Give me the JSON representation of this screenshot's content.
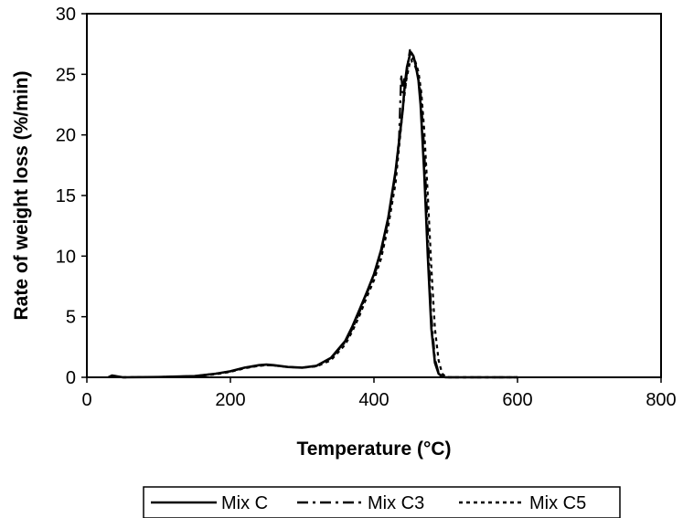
{
  "chart_data": {
    "type": "line",
    "xlabel": "Temperature (°C)",
    "ylabel": "Rate of weight loss (%/min)",
    "xlim": [
      0,
      800
    ],
    "ylim": [
      0,
      30
    ],
    "x_ticks": [
      "0",
      "200",
      "400",
      "600",
      "800"
    ],
    "y_ticks": [
      "0",
      "5",
      "10",
      "15",
      "20",
      "25",
      "30"
    ],
    "grid": false,
    "legend_position": "bottom",
    "series": [
      {
        "name": "Mix C",
        "style": "solid",
        "color": "#000000",
        "x": [
          30,
          35,
          40,
          50,
          100,
          150,
          180,
          200,
          220,
          240,
          250,
          260,
          280,
          300,
          320,
          340,
          360,
          370,
          380,
          390,
          400,
          410,
          420,
          430,
          435,
          440,
          443,
          446,
          450,
          452,
          455,
          458,
          462,
          465,
          470,
          475,
          480,
          485,
          490,
          495,
          500,
          520,
          600
        ],
        "y": [
          0.0,
          0.15,
          0.1,
          0.0,
          0.02,
          0.1,
          0.3,
          0.5,
          0.8,
          1.0,
          1.05,
          1.0,
          0.85,
          0.8,
          0.95,
          1.6,
          3.0,
          4.2,
          5.6,
          7.0,
          8.5,
          10.5,
          13.2,
          17.0,
          19.5,
          22.0,
          24.2,
          25.6,
          26.6,
          26.8,
          26.5,
          25.8,
          24.5,
          22.5,
          17.0,
          10.0,
          4.0,
          1.2,
          0.3,
          0.05,
          0.0,
          0.0,
          0.0
        ]
      },
      {
        "name": "Mix C3",
        "style": "dashdot",
        "color": "#000000",
        "x": [
          30,
          35,
          40,
          50,
          100,
          150,
          180,
          200,
          220,
          240,
          250,
          260,
          280,
          300,
          320,
          340,
          360,
          370,
          380,
          390,
          400,
          410,
          420,
          430,
          435,
          438,
          440,
          442,
          444,
          447,
          450,
          453,
          456,
          460,
          465,
          470,
          475,
          480,
          485,
          490,
          495,
          500,
          520,
          600
        ],
        "y": [
          0.0,
          0.12,
          0.08,
          0.0,
          0.02,
          0.1,
          0.3,
          0.5,
          0.8,
          0.95,
          1.0,
          0.98,
          0.85,
          0.8,
          0.95,
          1.55,
          2.9,
          4.0,
          5.4,
          6.9,
          8.3,
          10.2,
          13.0,
          16.8,
          19.8,
          25.0,
          23.5,
          24.6,
          24.0,
          25.8,
          27.0,
          26.0,
          25.9,
          25.2,
          23.5,
          19.0,
          12.0,
          5.0,
          1.5,
          0.4,
          0.05,
          0.0,
          0.0,
          0.0
        ]
      },
      {
        "name": "Mix C5",
        "style": "dotted",
        "color": "#000000",
        "x": [
          30,
          35,
          40,
          50,
          100,
          150,
          180,
          200,
          220,
          240,
          250,
          260,
          280,
          300,
          320,
          340,
          360,
          370,
          380,
          390,
          400,
          410,
          420,
          430,
          435,
          440,
          445,
          450,
          455,
          458,
          462,
          466,
          470,
          475,
          480,
          485,
          490,
          495,
          500,
          505,
          520,
          600
        ],
        "y": [
          0.0,
          0.1,
          0.08,
          0.0,
          0.02,
          0.08,
          0.25,
          0.45,
          0.75,
          0.95,
          1.0,
          0.98,
          0.85,
          0.8,
          0.9,
          1.4,
          2.7,
          3.8,
          5.1,
          6.6,
          8.0,
          9.8,
          12.5,
          16.0,
          19.0,
          22.0,
          24.5,
          26.0,
          26.4,
          26.0,
          25.2,
          23.5,
          20.5,
          15.0,
          9.0,
          4.0,
          1.4,
          0.3,
          0.05,
          0.0,
          0.0,
          0.0
        ]
      }
    ]
  }
}
